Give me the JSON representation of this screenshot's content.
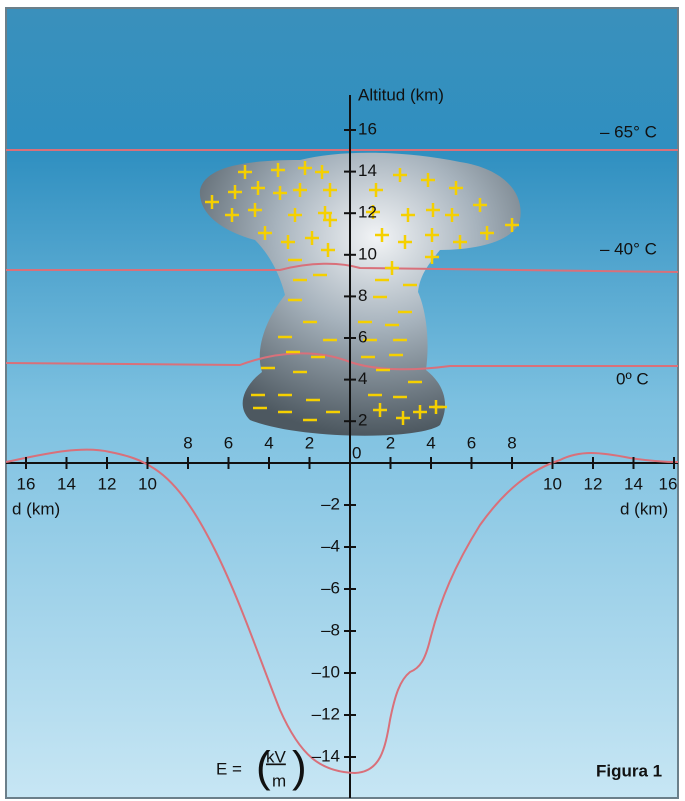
{
  "axis_title": "Altitud (km)",
  "altitude_ticks": [
    "16",
    "14",
    "12",
    "10",
    "8",
    "6",
    "4",
    "2"
  ],
  "origin": "0",
  "depth_ticks": [
    "–2",
    "–4",
    "–6",
    "–8",
    "–10",
    "–12",
    "–14"
  ],
  "upper_left_ticks": [
    "8",
    "6",
    "4",
    "2"
  ],
  "upper_right_ticks": [
    "2",
    "4",
    "6",
    "8"
  ],
  "lower_left_ticks": [
    "16",
    "14",
    "12",
    "10"
  ],
  "lower_right_ticks": [
    "10",
    "12",
    "14",
    "16"
  ],
  "left_axis_label": "d (km)",
  "right_axis_label": "d (km)",
  "temperatures": [
    "– 65° C",
    "– 40° C",
    "0º C"
  ],
  "formula": {
    "lhs": "E =",
    "numerator": "kV",
    "denominator": "m"
  },
  "figure_label": "Figura 1"
}
